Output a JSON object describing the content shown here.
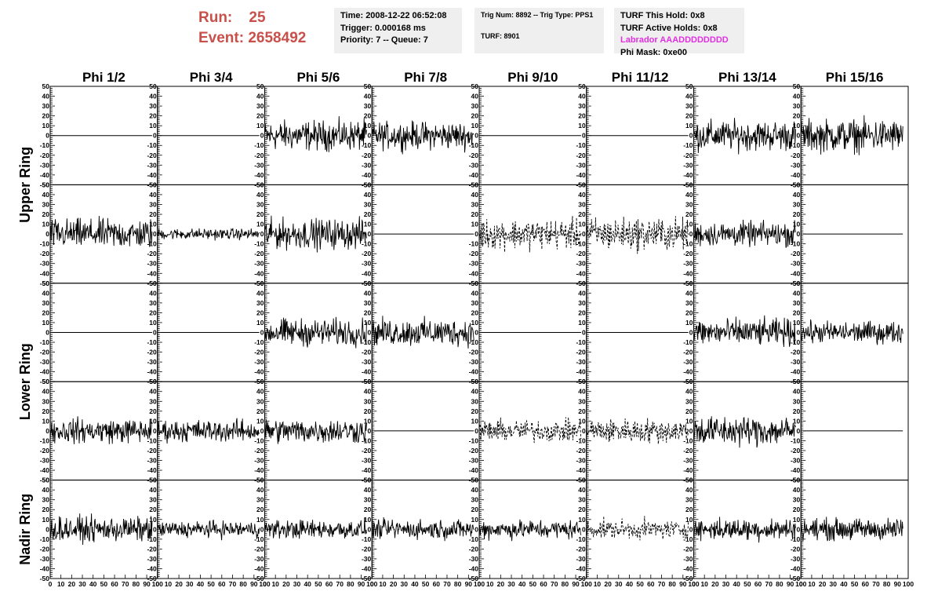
{
  "header": {
    "run_label": "Run:",
    "run_value": "25",
    "event_label": "Event:",
    "event_value": "2658492",
    "time": "Time: 2008-12-22 06:52:08",
    "trigger": "Trigger: 0.000168 ms",
    "priority": "Priority: 7 -- Queue: 7",
    "trig_num": "Trig Num: 8892 -- Trig Type: PPS1",
    "turf": "TURF: 8901",
    "turf_this_hold": "TURF This Hold: 0x8",
    "turf_active_holds": "TURF Active Holds: 0x8",
    "labrador": "Labrador AAADDDDDDDD",
    "phi_mask": "Phi Mask: 0xe00"
  },
  "colors": {
    "header_red": "#c9504a",
    "labrador_magenta": "#e030e0",
    "box_bg": "#efefef"
  },
  "chart_data": {
    "type": "line",
    "columns": [
      "Phi 1/2",
      "Phi 3/4",
      "Phi 5/6",
      "Phi 7/8",
      "Phi 9/10",
      "Phi 11/12",
      "Phi 13/14",
      "Phi 15/16"
    ],
    "rows": [
      "Upper Ring",
      "Lower Ring",
      "Nadir Ring"
    ],
    "ylim": [
      -50,
      50
    ],
    "y_ticks": [
      "50",
      "40",
      "30",
      "20",
      "10",
      "0",
      "-10",
      "-20",
      "-30",
      "-40",
      "-50"
    ],
    "xlim": [
      0,
      100
    ],
    "x_ticks": [
      "0",
      "10",
      "20",
      "30",
      "40",
      "50",
      "60",
      "70",
      "80",
      "90",
      "100"
    ],
    "grid": false,
    "panels": [
      [
        {
          "style": "flat"
        },
        {
          "style": "flat"
        },
        {
          "style": "noise",
          "amplitude": 22
        },
        {
          "style": "noise",
          "amplitude": 20
        },
        {
          "style": "flat"
        },
        {
          "style": "flat"
        },
        {
          "style": "noise",
          "amplitude": 22
        },
        {
          "style": "noise",
          "amplitude": 24
        }
      ],
      [
        {
          "style": "noise",
          "amplitude": 22
        },
        {
          "style": "noise",
          "amplitude": 8
        },
        {
          "style": "noise",
          "amplitude": 22
        },
        {
          "style": "flat"
        },
        {
          "style": "dashed",
          "amplitude": 22
        },
        {
          "style": "dashed",
          "amplitude": 24
        },
        {
          "style": "noise",
          "amplitude": 18
        },
        {
          "style": "flat"
        }
      ],
      [
        {
          "style": "flat"
        },
        {
          "style": "flat"
        },
        {
          "style": "noise",
          "amplitude": 20
        },
        {
          "style": "noise",
          "amplitude": 20
        },
        {
          "style": "flat"
        },
        {
          "style": "flat"
        },
        {
          "style": "noise",
          "amplitude": 20
        },
        {
          "style": "noise",
          "amplitude": 16
        }
      ],
      [
        {
          "style": "noise",
          "amplitude": 18
        },
        {
          "style": "noise",
          "amplitude": 16
        },
        {
          "style": "noise",
          "amplitude": 18
        },
        {
          "style": "flat"
        },
        {
          "style": "dashed",
          "amplitude": 16
        },
        {
          "style": "dashed",
          "amplitude": 18
        },
        {
          "style": "noise",
          "amplitude": 22
        },
        {
          "style": "flat"
        }
      ],
      [
        {
          "style": "noise",
          "amplitude": 18
        },
        {
          "style": "noise",
          "amplitude": 12
        },
        {
          "style": "noise",
          "amplitude": 14
        },
        {
          "style": "noise",
          "amplitude": 14
        },
        {
          "style": "noise",
          "amplitude": 14
        },
        {
          "style": "dashed",
          "amplitude": 14
        },
        {
          "style": "noise",
          "amplitude": 16
        },
        {
          "style": "noise",
          "amplitude": 16
        }
      ]
    ]
  }
}
